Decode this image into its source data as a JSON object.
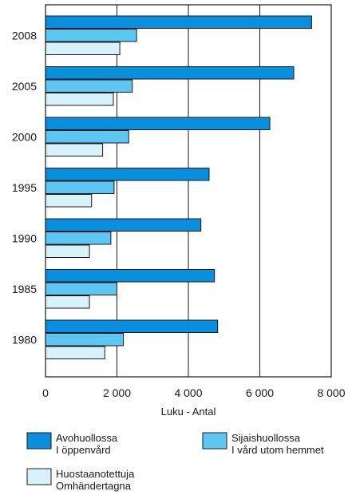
{
  "chart_data": {
    "type": "bar",
    "orientation": "horizontal",
    "categories": [
      "2008",
      "2005",
      "2000",
      "1995",
      "1990",
      "1985",
      "1980"
    ],
    "series": [
      {
        "name": "Avohuollossa",
        "name_2": "I öppenvård",
        "color": "#0a8ede",
        "values": [
          7450,
          6950,
          6280,
          4580,
          4350,
          4730,
          4820
        ]
      },
      {
        "name": "Sijaishuollossa",
        "name_2": "I vård utom hemmet",
        "color": "#5ec6f3",
        "values": [
          2550,
          2430,
          2330,
          1920,
          1830,
          2000,
          2180
        ]
      },
      {
        "name": "Huostaanotettuja",
        "name_2": "Omhändertagna",
        "color": "#d8f2fc",
        "values": [
          2080,
          1900,
          1600,
          1290,
          1230,
          1230,
          1660
        ]
      }
    ],
    "xlim": [
      0,
      8000
    ],
    "xticks": [
      0,
      2000,
      4000,
      6000,
      8000
    ],
    "xtick_labels": [
      "0",
      "2 000",
      "4 000",
      "6 000",
      "8 000"
    ],
    "xlabel": "Luku - Antal",
    "grid": "vertical"
  }
}
